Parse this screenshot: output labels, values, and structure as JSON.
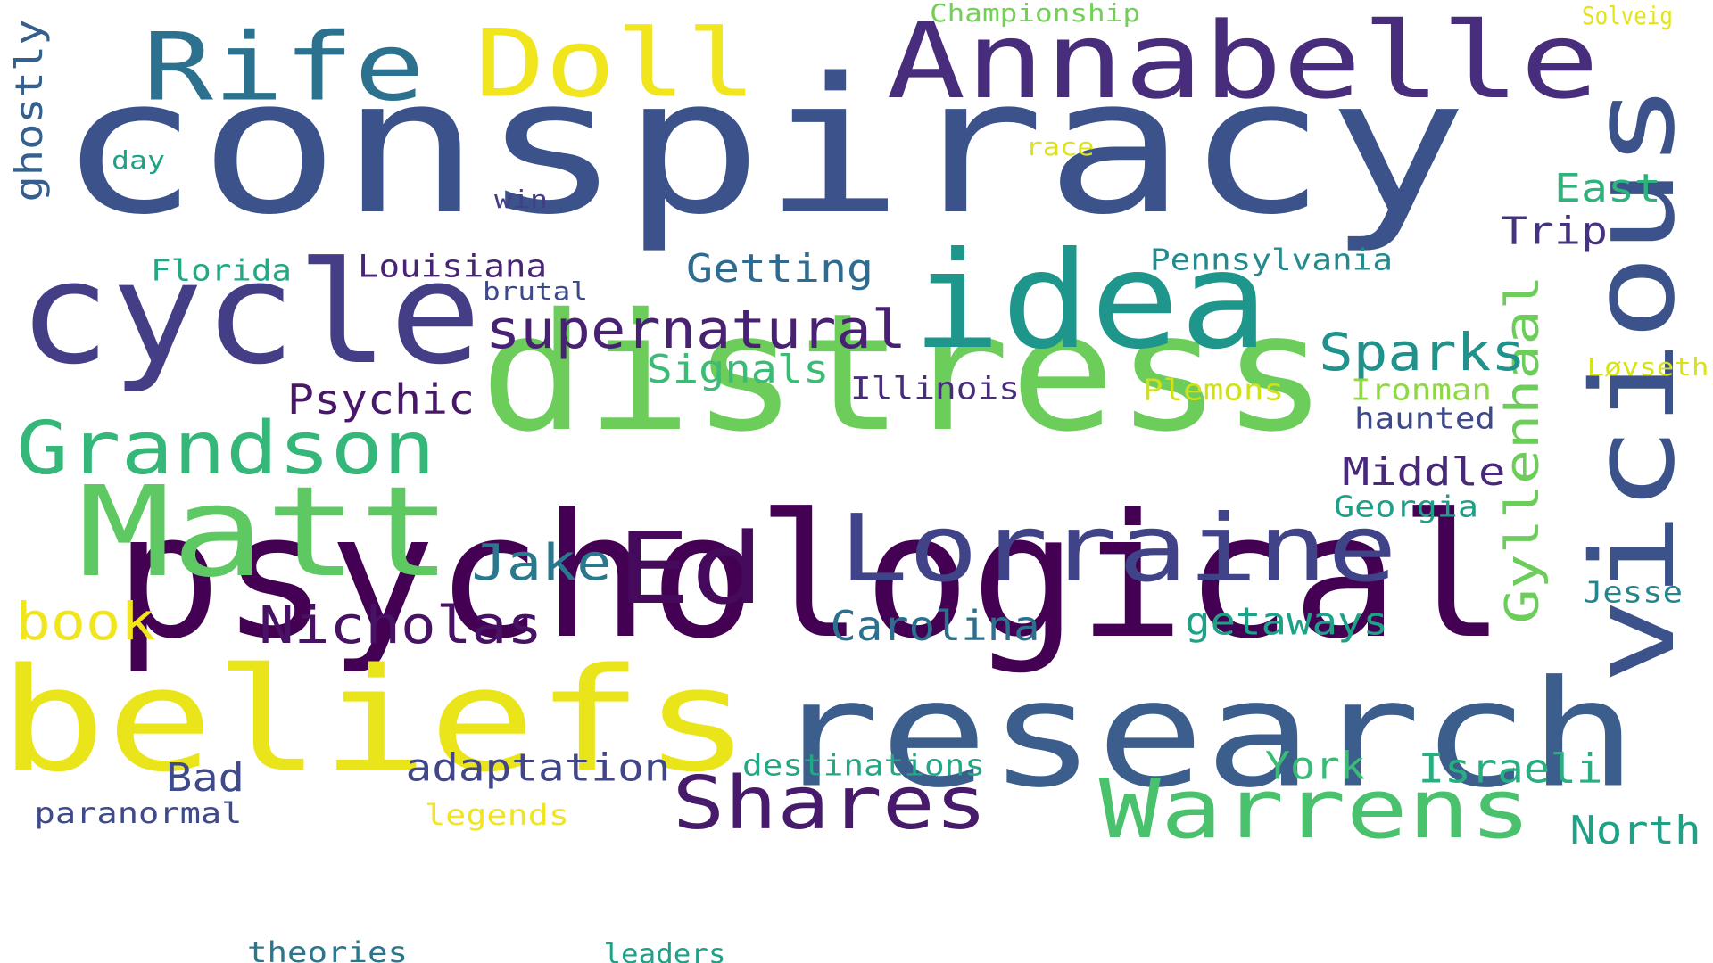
{
  "words": [
    {
      "id": "conspiracy",
      "text": "conspiracy",
      "color": "#3b528b"
    },
    {
      "id": "psychological",
      "text": "psychological",
      "color": "#440154"
    },
    {
      "id": "distress",
      "text": "distress",
      "color": "#6ccd5a"
    },
    {
      "id": "research",
      "text": "research",
      "color": "#3b5e8c"
    },
    {
      "id": "beliefs",
      "text": "beliefs",
      "color": "#eae51a"
    },
    {
      "id": "vicious",
      "text": "vicious",
      "color": "#3b528b"
    },
    {
      "id": "cycle",
      "text": "cycle",
      "color": "#433e85"
    },
    {
      "id": "idea",
      "text": "idea",
      "color": "#1f968b"
    },
    {
      "id": "Matt",
      "text": "Matt",
      "color": "#5ec962"
    },
    {
      "id": "Annabelle",
      "text": "Annabelle",
      "color": "#472d7b"
    },
    {
      "id": "Lorraine",
      "text": "Lorraine",
      "color": "#404387"
    },
    {
      "id": "Rife",
      "text": "Rife",
      "color": "#2c728e"
    },
    {
      "id": "Doll",
      "text": "Doll",
      "color": "#f1e51d"
    },
    {
      "id": "Ed",
      "text": "Ed",
      "color": "#450a5c"
    },
    {
      "id": "Warrens",
      "text": "Warrens",
      "color": "#4ac16d"
    },
    {
      "id": "Shares",
      "text": "Shares",
      "color": "#481a6c"
    },
    {
      "id": "Grandson",
      "text": "Grandson",
      "color": "#35b779"
    },
    {
      "id": "supernatural",
      "text": "supernatural",
      "color": "#482173"
    },
    {
      "id": "Nicholas",
      "text": "Nicholas",
      "color": "#471164"
    },
    {
      "id": "Gyllenhaal",
      "text": "Gyllenhaal",
      "color": "#6ccd5a"
    },
    {
      "id": "Jake",
      "text": "Jake",
      "color": "#2a788e"
    },
    {
      "id": "book",
      "text": "book",
      "color": "#f1e51d"
    },
    {
      "id": "Sparks",
      "text": "Sparks",
      "color": "#21918c"
    },
    {
      "id": "adaptation",
      "text": "adaptation",
      "color": "#404688"
    },
    {
      "id": "Psychic",
      "text": "Psychic",
      "color": "#481769"
    },
    {
      "id": "Carolina",
      "text": "Carolina",
      "color": "#2d708e"
    },
    {
      "id": "Getting",
      "text": "Getting",
      "color": "#2f6b8e"
    },
    {
      "id": "getaways",
      "text": "getaways",
      "color": "#1fa188"
    },
    {
      "id": "Signals",
      "text": "Signals",
      "color": "#3bbb75"
    },
    {
      "id": "York",
      "text": "York",
      "color": "#3bbb75"
    },
    {
      "id": "Israeli",
      "text": "Israeli",
      "color": "#29af7f"
    },
    {
      "id": "North",
      "text": "North",
      "color": "#1fa188"
    },
    {
      "id": "East",
      "text": "East",
      "color": "#2eb37c"
    },
    {
      "id": "Middle",
      "text": "Middle",
      "color": "#482878"
    },
    {
      "id": "Trip",
      "text": "Trip",
      "color": "#46337f"
    },
    {
      "id": "Bad",
      "text": "Bad",
      "color": "#3e4a89"
    },
    {
      "id": "ghostly",
      "text": "ghostly",
      "color": "#355f8d"
    },
    {
      "id": "Louisiana",
      "text": "Louisiana",
      "color": "#482475"
    },
    {
      "id": "Illinois",
      "text": "Illinois",
      "color": "#472c7a"
    },
    {
      "id": "Pennsylvania",
      "text": "Pennsylvania",
      "color": "#238a8d"
    },
    {
      "id": "Florida",
      "text": "Florida",
      "color": "#22a884"
    },
    {
      "id": "destinations",
      "text": "destinations",
      "color": "#22a884"
    },
    {
      "id": "haunted",
      "text": "haunted",
      "color": "#3e4989"
    },
    {
      "id": "Georgia",
      "text": "Georgia",
      "color": "#1f9e89"
    },
    {
      "id": "Jesse",
      "text": "Jesse",
      "color": "#25858e"
    },
    {
      "id": "Plemons",
      "text": "Plemons",
      "color": "#d0e11c"
    },
    {
      "id": "Ironman",
      "text": "Ironman",
      "color": "#8fd744"
    },
    {
      "id": "paranormal",
      "text": "paranormal",
      "color": "#3e4a89"
    },
    {
      "id": "legends",
      "text": "legends",
      "color": "#f1e51d"
    },
    {
      "id": "theories",
      "text": "theories",
      "color": "#2a768e"
    },
    {
      "id": "leaders",
      "text": "leaders",
      "color": "#1fa188"
    },
    {
      "id": "brutal",
      "text": "brutal",
      "color": "#3e4989"
    },
    {
      "id": "win",
      "text": "win",
      "color": "#433e85"
    },
    {
      "id": "day",
      "text": "day",
      "color": "#1fa188"
    },
    {
      "id": "race",
      "text": "race",
      "color": "#dde318"
    },
    {
      "id": "Championship",
      "text": "Championship",
      "color": "#73d056"
    },
    {
      "id": "Solveig",
      "text": "Solveig",
      "color": "#e2e418"
    },
    {
      "id": "Lovseth",
      "text": "Løvseth",
      "color": "#d8e219"
    }
  ]
}
